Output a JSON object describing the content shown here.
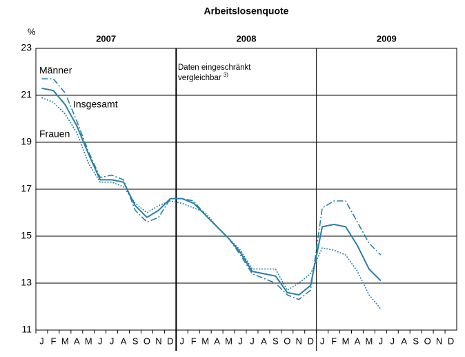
{
  "chart_data": {
    "type": "line",
    "title": "Arbeitslosenquote",
    "y_label": "%",
    "categories": [
      "J",
      "F",
      "M",
      "A",
      "M",
      "J",
      "J",
      "A",
      "S",
      "O",
      "N",
      "D",
      "J",
      "F",
      "M",
      "A",
      "M",
      "J",
      "J",
      "A",
      "S",
      "O",
      "N",
      "D",
      "J",
      "F",
      "M",
      "A",
      "M",
      "J",
      "J",
      "A",
      "S",
      "O",
      "N",
      "D"
    ],
    "year_labels": [
      "2007",
      "2008",
      "2009"
    ],
    "ylim": [
      11,
      23
    ],
    "yticks": [
      11,
      13,
      15,
      17,
      19,
      21,
      23
    ],
    "grid": true,
    "series": [
      {
        "name": "Männer",
        "color": "#2a7fa5",
        "dash": "9,3,2,3",
        "values": [
          21.7,
          21.7,
          21.1,
          19.9,
          18.6,
          17.5,
          17.6,
          17.4,
          16.1,
          15.6,
          15.8,
          16.6,
          16.6,
          16.5,
          15.9,
          15.4,
          14.9,
          14.2,
          13.4,
          13.2,
          13.0,
          12.5,
          12.3,
          12.7,
          16.2,
          16.5,
          16.5,
          15.6,
          14.7,
          14.2,
          null,
          null,
          null,
          null,
          null,
          null
        ]
      },
      {
        "name": "Insgesamt",
        "color": "#2a7fa5",
        "dash": "none",
        "values": [
          21.3,
          21.2,
          20.6,
          19.7,
          18.5,
          17.4,
          17.4,
          17.3,
          16.3,
          15.8,
          16.1,
          16.6,
          16.6,
          16.4,
          15.9,
          15.4,
          14.9,
          14.3,
          13.5,
          13.4,
          13.3,
          12.6,
          12.5,
          12.9,
          15.4,
          15.5,
          15.4,
          14.6,
          13.6,
          13.1,
          null,
          null,
          null,
          null,
          null,
          null
        ]
      },
      {
        "name": "Frauen",
        "color": "#2a7fa5",
        "dash": "2,2",
        "values": [
          20.9,
          20.7,
          20.2,
          19.4,
          18.1,
          17.3,
          17.3,
          17.1,
          16.4,
          16.0,
          16.3,
          16.5,
          16.4,
          16.2,
          16.0,
          15.4,
          14.9,
          14.4,
          13.6,
          13.6,
          13.6,
          12.7,
          13.0,
          13.4,
          14.5,
          14.4,
          14.2,
          13.5,
          12.5,
          11.9,
          null,
          null,
          null,
          null,
          null,
          null
        ]
      }
    ],
    "annotation": [
      "Daten eingeschränkt",
      "vergleichbar"
    ],
    "annotation_note": "3)"
  }
}
